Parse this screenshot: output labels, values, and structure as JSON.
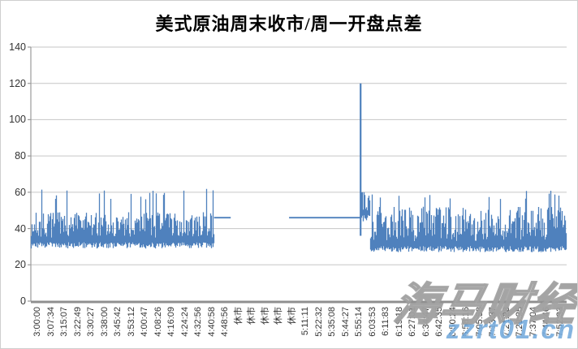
{
  "watermark": {
    "brand": "海马财经",
    "site": "zzrt01.cn",
    "site_color": "#5B9BD5"
  },
  "chart_data": {
    "type": "line",
    "title": "美式原油周末收市/周一开盘点差",
    "xlabel": "",
    "ylabel": "",
    "ylim": [
      0,
      140
    ],
    "yticks": [
      0,
      20,
      40,
      60,
      80,
      100,
      120,
      140
    ],
    "grid": true,
    "legend": false,
    "series_color": "#4F81BD",
    "market_closed_label": "休市",
    "categories": [
      "3:00:00",
      "3:07:34",
      "3:15:07",
      "3:22:49",
      "3:30:27",
      "3:38:00",
      "3:45:42",
      "3:53:12",
      "4:00:47",
      "4:08:26",
      "4:16:09",
      "4:24:24",
      "4:32:56",
      "4:40:58",
      "4:48:56",
      "休市",
      "休市",
      "休市",
      "休市",
      "休市",
      "5:11:11",
      "5:22:32",
      "5:35:08",
      "5:44:27",
      "5:55:14",
      "6:03:53",
      "6:11:83",
      "6:19:18",
      "6:27:01",
      "6:34:47",
      "6:42:35",
      "6:50:24",
      "6:58:16",
      "7:05:58",
      "7:13:37",
      "7:21:28",
      "7:29:25",
      "7:37:04",
      "7:44:46",
      "7:52:33"
    ],
    "flat_value": 46,
    "key_points": [
      {
        "category": "5:55:14",
        "value": 120,
        "note": "max spike"
      }
    ],
    "segments": [
      {
        "kind": "noise",
        "from": 0.0,
        "to": 0.342,
        "low": 29,
        "high": 47,
        "spike_high": 62,
        "spike_rate": 0.07,
        "note": "pre-close dense noise ~29-47, peaks to ~62"
      },
      {
        "kind": "flat",
        "from": 0.342,
        "to": 0.373,
        "value": 46
      },
      {
        "kind": "gap",
        "from": 0.373,
        "to": 0.482,
        "note": "market closed 休市 - no data"
      },
      {
        "kind": "flat",
        "from": 0.482,
        "to": 0.615,
        "value": 46
      },
      {
        "kind": "spike",
        "at": 0.6155,
        "value": 120,
        "base": 36
      },
      {
        "kind": "noise",
        "from": 0.617,
        "to": 0.634,
        "low": 44,
        "high": 60,
        "spike_high": 60,
        "spike_rate": 0.0,
        "note": "post-open elevated block ~44-60"
      },
      {
        "kind": "noise",
        "from": 0.634,
        "to": 1.0,
        "low": 27,
        "high": 50,
        "spike_high": 62,
        "spike_rate": 0.06,
        "note": "post-open dense noise ~27-50, peaks to ~62"
      }
    ]
  }
}
